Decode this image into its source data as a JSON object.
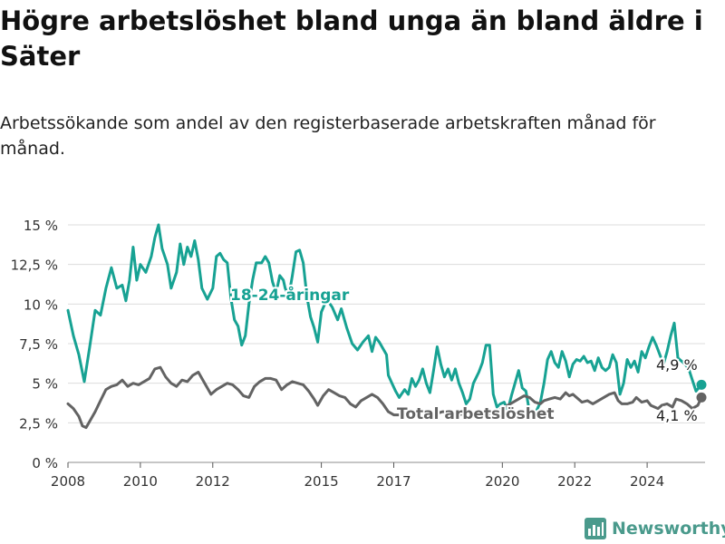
{
  "title": "Högre arbetslöshet bland unga än bland äldre i Säter",
  "subtitle": "Arbetssökande som andel av den registerbaserade arbetskraften månad för månad.",
  "brand": {
    "name": "Newsworthy",
    "icon": "bar-chart-logo-icon",
    "color": "#4a9a8c"
  },
  "chart_data": {
    "type": "line",
    "xlim": [
      2008,
      2025.6
    ],
    "ylim": [
      0,
      15
    ],
    "y_ticks": [
      0,
      2.5,
      5,
      7.5,
      10,
      12.5,
      15
    ],
    "y_tick_labels": [
      "0 %",
      "2,5 %",
      "5 %",
      "7,5 %",
      "10 %",
      "12,5 %",
      "15 %"
    ],
    "x_ticks": [
      2008,
      2010,
      2012,
      2015,
      2017,
      2020,
      2022,
      2024
    ],
    "x_tick_labels": [
      "2008",
      "2010",
      "2012",
      "2015",
      "2017",
      "2020",
      "2022",
      "2024"
    ],
    "grid": true,
    "series": [
      {
        "name": "18-24-åringar",
        "color": "#17a293",
        "end_label": "4,9 %",
        "points": [
          [
            2008.0,
            9.6
          ],
          [
            2008.15,
            8.0
          ],
          [
            2008.3,
            6.8
          ],
          [
            2008.45,
            5.1
          ],
          [
            2008.6,
            7.3
          ],
          [
            2008.75,
            9.6
          ],
          [
            2008.9,
            9.3
          ],
          [
            2009.05,
            11.0
          ],
          [
            2009.2,
            12.3
          ],
          [
            2009.35,
            11.0
          ],
          [
            2009.5,
            11.2
          ],
          [
            2009.6,
            10.2
          ],
          [
            2009.7,
            11.5
          ],
          [
            2009.8,
            13.6
          ],
          [
            2009.9,
            11.5
          ],
          [
            2010.0,
            12.5
          ],
          [
            2010.15,
            12.0
          ],
          [
            2010.3,
            13.0
          ],
          [
            2010.4,
            14.2
          ],
          [
            2010.5,
            15.0
          ],
          [
            2010.6,
            13.5
          ],
          [
            2010.75,
            12.5
          ],
          [
            2010.85,
            11.0
          ],
          [
            2011.0,
            12.0
          ],
          [
            2011.1,
            13.8
          ],
          [
            2011.2,
            12.5
          ],
          [
            2011.3,
            13.6
          ],
          [
            2011.4,
            13.0
          ],
          [
            2011.5,
            14.0
          ],
          [
            2011.6,
            12.8
          ],
          [
            2011.7,
            11.0
          ],
          [
            2011.85,
            10.3
          ],
          [
            2012.0,
            11.0
          ],
          [
            2012.1,
            13.0
          ],
          [
            2012.2,
            13.2
          ],
          [
            2012.3,
            12.8
          ],
          [
            2012.4,
            12.6
          ],
          [
            2012.5,
            10.4
          ],
          [
            2012.6,
            9.0
          ],
          [
            2012.7,
            8.6
          ],
          [
            2012.8,
            7.4
          ],
          [
            2012.9,
            8.0
          ],
          [
            2013.0,
            10.0
          ],
          [
            2013.1,
            11.5
          ],
          [
            2013.2,
            12.6
          ],
          [
            2013.35,
            12.6
          ],
          [
            2013.45,
            13.0
          ],
          [
            2013.55,
            12.6
          ],
          [
            2013.65,
            11.4
          ],
          [
            2013.75,
            10.7
          ],
          [
            2013.85,
            11.8
          ],
          [
            2013.95,
            11.5
          ],
          [
            2014.0,
            11.0
          ],
          [
            2014.1,
            10.5
          ],
          [
            2014.2,
            11.8
          ],
          [
            2014.3,
            13.3
          ],
          [
            2014.4,
            13.4
          ],
          [
            2014.5,
            12.6
          ],
          [
            2014.6,
            10.5
          ],
          [
            2014.7,
            9.2
          ],
          [
            2014.8,
            8.5
          ],
          [
            2014.9,
            7.6
          ],
          [
            2015.0,
            9.5
          ],
          [
            2015.15,
            10.3
          ],
          [
            2015.3,
            9.8
          ],
          [
            2015.45,
            9.0
          ],
          [
            2015.55,
            9.7
          ],
          [
            2015.7,
            8.5
          ],
          [
            2015.85,
            7.5
          ],
          [
            2016.0,
            7.1
          ],
          [
            2016.15,
            7.6
          ],
          [
            2016.3,
            8.0
          ],
          [
            2016.4,
            7.0
          ],
          [
            2016.5,
            7.9
          ],
          [
            2016.6,
            7.6
          ],
          [
            2016.7,
            7.2
          ],
          [
            2016.8,
            6.8
          ],
          [
            2016.85,
            5.5
          ],
          [
            2016.95,
            5.0
          ],
          [
            2017.05,
            4.5
          ],
          [
            2017.15,
            4.1
          ],
          [
            2017.3,
            4.6
          ],
          [
            2017.4,
            4.3
          ],
          [
            2017.5,
            5.3
          ],
          [
            2017.6,
            4.8
          ],
          [
            2017.7,
            5.2
          ],
          [
            2017.8,
            5.9
          ],
          [
            2017.9,
            5.0
          ],
          [
            2018.0,
            4.4
          ],
          [
            2018.1,
            5.8
          ],
          [
            2018.2,
            7.3
          ],
          [
            2018.3,
            6.2
          ],
          [
            2018.4,
            5.4
          ],
          [
            2018.5,
            5.9
          ],
          [
            2018.6,
            5.2
          ],
          [
            2018.7,
            5.9
          ],
          [
            2018.8,
            5.0
          ],
          [
            2018.9,
            4.4
          ],
          [
            2019.0,
            3.7
          ],
          [
            2019.1,
            4.0
          ],
          [
            2019.2,
            5.0
          ],
          [
            2019.35,
            5.7
          ],
          [
            2019.45,
            6.3
          ],
          [
            2019.55,
            7.4
          ],
          [
            2019.65,
            7.4
          ],
          [
            2019.75,
            4.3
          ],
          [
            2019.85,
            3.5
          ],
          [
            2019.95,
            3.7
          ],
          [
            2020.05,
            3.8
          ],
          [
            2020.15,
            3.3
          ],
          [
            2020.25,
            4.2
          ],
          [
            2020.35,
            5.0
          ],
          [
            2020.45,
            5.8
          ],
          [
            2020.55,
            4.7
          ],
          [
            2020.65,
            4.5
          ],
          [
            2020.75,
            3.2
          ],
          [
            2020.85,
            2.8
          ],
          [
            2020.95,
            3.3
          ],
          [
            2021.05,
            3.8
          ],
          [
            2021.15,
            5.0
          ],
          [
            2021.25,
            6.5
          ],
          [
            2021.35,
            7.0
          ],
          [
            2021.45,
            6.3
          ],
          [
            2021.55,
            6.0
          ],
          [
            2021.65,
            7.0
          ],
          [
            2021.75,
            6.4
          ],
          [
            2021.85,
            5.4
          ],
          [
            2021.95,
            6.2
          ],
          [
            2022.05,
            6.5
          ],
          [
            2022.15,
            6.4
          ],
          [
            2022.25,
            6.7
          ],
          [
            2022.35,
            6.3
          ],
          [
            2022.45,
            6.4
          ],
          [
            2022.55,
            5.8
          ],
          [
            2022.65,
            6.6
          ],
          [
            2022.75,
            6.0
          ],
          [
            2022.85,
            5.8
          ],
          [
            2022.95,
            6.0
          ],
          [
            2023.05,
            6.8
          ],
          [
            2023.15,
            6.3
          ],
          [
            2023.25,
            4.3
          ],
          [
            2023.35,
            5.0
          ],
          [
            2023.45,
            6.5
          ],
          [
            2023.55,
            6.0
          ],
          [
            2023.65,
            6.4
          ],
          [
            2023.75,
            5.7
          ],
          [
            2023.85,
            7.0
          ],
          [
            2023.95,
            6.6
          ],
          [
            2024.05,
            7.3
          ],
          [
            2024.15,
            7.9
          ],
          [
            2024.25,
            7.4
          ],
          [
            2024.35,
            6.8
          ],
          [
            2024.45,
            6.2
          ],
          [
            2024.55,
            7.0
          ],
          [
            2024.65,
            8.0
          ],
          [
            2024.75,
            8.8
          ],
          [
            2024.85,
            6.6
          ],
          [
            2024.95,
            6.4
          ],
          [
            2025.05,
            6.2
          ],
          [
            2025.15,
            5.9
          ],
          [
            2025.25,
            5.2
          ],
          [
            2025.35,
            4.5
          ],
          [
            2025.5,
            4.9
          ]
        ]
      },
      {
        "name": "Total arbetslöshet",
        "color": "#636363",
        "end_label": "4,1 %",
        "points": [
          [
            2008.0,
            3.7
          ],
          [
            2008.15,
            3.4
          ],
          [
            2008.3,
            2.9
          ],
          [
            2008.4,
            2.3
          ],
          [
            2008.5,
            2.2
          ],
          [
            2008.6,
            2.6
          ],
          [
            2008.75,
            3.2
          ],
          [
            2008.9,
            3.9
          ],
          [
            2009.05,
            4.6
          ],
          [
            2009.2,
            4.8
          ],
          [
            2009.35,
            4.9
          ],
          [
            2009.5,
            5.2
          ],
          [
            2009.65,
            4.8
          ],
          [
            2009.8,
            5.0
          ],
          [
            2009.95,
            4.9
          ],
          [
            2010.1,
            5.1
          ],
          [
            2010.25,
            5.3
          ],
          [
            2010.4,
            5.9
          ],
          [
            2010.55,
            6.0
          ],
          [
            2010.7,
            5.4
          ],
          [
            2010.85,
            5.0
          ],
          [
            2011.0,
            4.8
          ],
          [
            2011.15,
            5.2
          ],
          [
            2011.3,
            5.1
          ],
          [
            2011.45,
            5.5
          ],
          [
            2011.6,
            5.7
          ],
          [
            2011.75,
            5.1
          ],
          [
            2011.85,
            4.7
          ],
          [
            2011.95,
            4.3
          ],
          [
            2012.1,
            4.6
          ],
          [
            2012.25,
            4.8
          ],
          [
            2012.4,
            5.0
          ],
          [
            2012.55,
            4.9
          ],
          [
            2012.7,
            4.6
          ],
          [
            2012.85,
            4.2
          ],
          [
            2013.0,
            4.1
          ],
          [
            2013.15,
            4.8
          ],
          [
            2013.3,
            5.1
          ],
          [
            2013.45,
            5.3
          ],
          [
            2013.6,
            5.3
          ],
          [
            2013.75,
            5.2
          ],
          [
            2013.9,
            4.6
          ],
          [
            2014.05,
            4.9
          ],
          [
            2014.2,
            5.1
          ],
          [
            2014.35,
            5.0
          ],
          [
            2014.5,
            4.9
          ],
          [
            2014.65,
            4.5
          ],
          [
            2014.8,
            4.0
          ],
          [
            2014.9,
            3.6
          ],
          [
            2015.05,
            4.2
          ],
          [
            2015.2,
            4.6
          ],
          [
            2015.35,
            4.4
          ],
          [
            2015.5,
            4.2
          ],
          [
            2015.65,
            4.1
          ],
          [
            2015.8,
            3.7
          ],
          [
            2015.95,
            3.5
          ],
          [
            2016.1,
            3.9
          ],
          [
            2016.25,
            4.1
          ],
          [
            2016.4,
            4.3
          ],
          [
            2016.55,
            4.1
          ],
          [
            2016.7,
            3.7
          ],
          [
            2016.85,
            3.2
          ],
          [
            2017.0,
            3.0
          ],
          [
            2017.15,
            3.0
          ],
          [
            2017.3,
            3.0
          ],
          [
            2017.45,
            3.1
          ],
          [
            2017.6,
            3.2
          ],
          [
            2017.75,
            3.3
          ],
          [
            2017.9,
            3.1
          ],
          [
            2018.05,
            3.0
          ],
          [
            2018.2,
            3.1
          ],
          [
            2018.35,
            3.2
          ],
          [
            2018.5,
            3.2
          ],
          [
            2018.65,
            3.1
          ],
          [
            2018.8,
            3.0
          ],
          [
            2018.95,
            3.1
          ],
          [
            2019.1,
            3.0
          ],
          [
            2019.25,
            3.1
          ],
          [
            2019.4,
            3.2
          ],
          [
            2019.55,
            3.1
          ],
          [
            2019.7,
            3.0
          ],
          [
            2019.85,
            3.2
          ],
          [
            2020.0,
            3.4
          ],
          [
            2020.15,
            3.6
          ],
          [
            2020.3,
            3.8
          ],
          [
            2020.45,
            4.0
          ],
          [
            2020.6,
            4.2
          ],
          [
            2020.75,
            4.1
          ],
          [
            2020.9,
            3.8
          ],
          [
            2021.05,
            3.7
          ],
          [
            2021.15,
            3.9
          ],
          [
            2021.3,
            4.0
          ],
          [
            2021.45,
            4.1
          ],
          [
            2021.6,
            4.0
          ],
          [
            2021.75,
            4.4
          ],
          [
            2021.85,
            4.2
          ],
          [
            2021.95,
            4.3
          ],
          [
            2022.05,
            4.1
          ],
          [
            2022.2,
            3.8
          ],
          [
            2022.35,
            3.9
          ],
          [
            2022.5,
            3.7
          ],
          [
            2022.65,
            3.9
          ],
          [
            2022.8,
            4.1
          ],
          [
            2022.95,
            4.3
          ],
          [
            2023.1,
            4.4
          ],
          [
            2023.2,
            3.9
          ],
          [
            2023.3,
            3.7
          ],
          [
            2023.45,
            3.7
          ],
          [
            2023.6,
            3.8
          ],
          [
            2023.7,
            4.1
          ],
          [
            2023.85,
            3.8
          ],
          [
            2024.0,
            3.9
          ],
          [
            2024.1,
            3.6
          ],
          [
            2024.2,
            3.5
          ],
          [
            2024.3,
            3.4
          ],
          [
            2024.4,
            3.6
          ],
          [
            2024.55,
            3.7
          ],
          [
            2024.7,
            3.5
          ],
          [
            2024.8,
            4.0
          ],
          [
            2024.95,
            3.9
          ],
          [
            2025.1,
            3.7
          ],
          [
            2025.25,
            3.4
          ],
          [
            2025.4,
            3.6
          ],
          [
            2025.5,
            4.1
          ]
        ]
      }
    ]
  }
}
